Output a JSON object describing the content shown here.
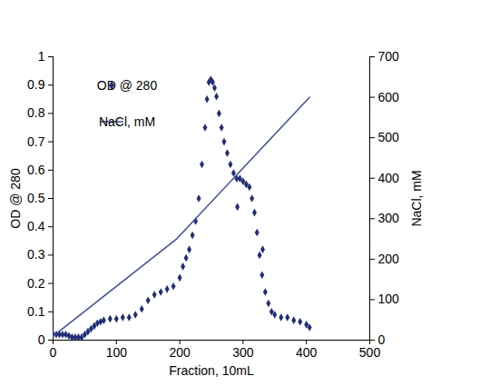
{
  "chart_data": {
    "type": "scatter",
    "xlabel": "Fraction, 10mL",
    "ylabel": "OD @ 280",
    "y2label": "NaCl, mM",
    "xlim": [
      0,
      500
    ],
    "xticks": [
      0,
      100,
      200,
      300,
      400,
      500
    ],
    "ylim": [
      0,
      1
    ],
    "yticks": [
      0,
      0.1,
      0.2,
      0.3,
      0.4,
      0.5,
      0.6,
      0.7,
      0.8,
      0.9,
      1
    ],
    "y2lim": [
      0,
      700
    ],
    "y2ticks": [
      0,
      100,
      200,
      300,
      400,
      500,
      600,
      700
    ],
    "legend": "upper left",
    "series": [
      {
        "name": "OD @ 280",
        "type": "scatter",
        "marker": "diamond",
        "color": "#1f2d7a",
        "x": [
          0,
          5,
          10,
          15,
          20,
          25,
          30,
          35,
          40,
          45,
          50,
          55,
          60,
          65,
          70,
          75,
          80,
          90,
          100,
          110,
          120,
          130,
          140,
          150,
          160,
          170,
          180,
          190,
          200,
          205,
          210,
          215,
          220,
          225,
          230,
          235,
          240,
          243,
          246,
          249,
          252,
          255,
          258,
          262,
          266,
          270,
          275,
          280,
          285,
          290,
          291,
          295,
          300,
          305,
          310,
          314,
          318,
          322,
          326,
          330,
          331,
          335,
          340,
          345,
          350,
          360,
          370,
          380,
          390,
          400,
          405
        ],
        "values": [
          0.02,
          0.02,
          0.02,
          0.02,
          0.02,
          0.015,
          0.01,
          0.01,
          0.01,
          0.01,
          0.02,
          0.03,
          0.04,
          0.05,
          0.06,
          0.065,
          0.07,
          0.075,
          0.075,
          0.08,
          0.08,
          0.09,
          0.11,
          0.14,
          0.16,
          0.17,
          0.18,
          0.19,
          0.22,
          0.26,
          0.29,
          0.32,
          0.37,
          0.42,
          0.5,
          0.62,
          0.75,
          0.85,
          0.91,
          0.92,
          0.91,
          0.89,
          0.86,
          0.8,
          0.75,
          0.7,
          0.66,
          0.62,
          0.59,
          0.57,
          0.47,
          0.57,
          0.56,
          0.55,
          0.54,
          0.5,
          0.45,
          0.38,
          0.3,
          0.23,
          0.32,
          0.17,
          0.13,
          0.1,
          0.09,
          0.08,
          0.08,
          0.07,
          0.065,
          0.055,
          0.045
        ]
      },
      {
        "name": "NaCl, mM",
        "type": "line",
        "axis": "y2",
        "color": "#3c4f9e",
        "x": [
          0,
          195,
          405
        ],
        "values": [
          10,
          250,
          600
        ]
      }
    ]
  }
}
